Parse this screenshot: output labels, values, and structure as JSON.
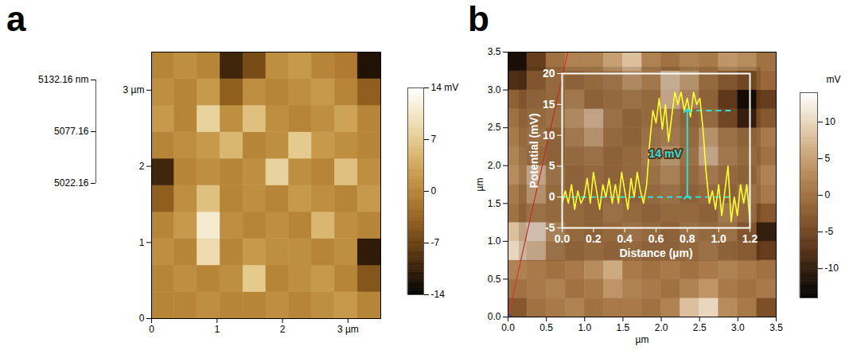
{
  "chart_data": [
    {
      "type": "heatmap",
      "panel": "a",
      "x_edges": [
        0,
        0.35,
        0.7,
        1.05,
        1.4,
        1.75,
        2.1,
        2.45,
        2.8,
        3.15,
        3.5
      ],
      "y_edges": [
        0,
        0.35,
        0.7,
        1.05,
        1.4,
        1.75,
        2.1,
        2.45,
        2.8,
        3.15,
        3.5
      ],
      "values": [
        [
          0,
          0,
          1,
          0,
          0,
          1,
          0,
          1,
          2,
          0
        ],
        [
          0,
          1,
          0,
          1,
          7,
          0,
          1,
          2,
          0,
          -5
        ],
        [
          1,
          0,
          9,
          0,
          2,
          1,
          1,
          0,
          1,
          -11
        ],
        [
          0,
          2,
          11,
          1,
          0,
          1,
          0,
          5,
          1,
          0
        ],
        [
          -4,
          1,
          6,
          0,
          1,
          0,
          2,
          1,
          0,
          2
        ],
        [
          -10,
          0,
          1,
          0,
          1,
          8,
          1,
          0,
          6,
          1
        ],
        [
          0,
          1,
          2,
          5,
          0,
          1,
          7,
          2,
          1,
          0
        ],
        [
          2,
          0,
          8,
          1,
          6,
          1,
          0,
          1,
          3,
          0
        ],
        [
          1,
          0,
          2,
          -4,
          1,
          0,
          1,
          2,
          0,
          -4
        ],
        [
          0,
          1,
          0,
          -10,
          -6,
          1,
          2,
          0,
          -1,
          -12
        ]
      ],
      "xlim": [
        0,
        3.5
      ],
      "ylim": [
        0,
        3.5
      ],
      "xticks": [
        0,
        1,
        2,
        {
          "value": 3,
          "label": "3 µm"
        }
      ],
      "yticks": [
        0,
        1,
        2,
        {
          "value": 3,
          "label": "3 µm"
        }
      ],
      "zlim": [
        5022.16,
        5132.16
      ],
      "zticks": [
        {
          "value": 5022.16,
          "label": "5022.16"
        },
        {
          "value": 5077.16,
          "label": "5077.16"
        },
        {
          "value": 5132.16,
          "label": "5132.16 nm"
        }
      ],
      "colorbar": {
        "lim": [
          -14,
          14
        ],
        "ticks": [
          -14,
          -7,
          0,
          7,
          {
            "value": 14,
            "label": "14 mV"
          }
        ]
      }
    },
    {
      "type": "heatmap",
      "panel": "b",
      "x_label": "µm",
      "y_label": "µm",
      "x_edges": [
        0,
        0.25,
        0.5,
        0.75,
        1,
        1.25,
        1.5,
        1.75,
        2,
        2.25,
        2.5,
        2.75,
        3,
        3.25,
        3.5
      ],
      "y_edges": [
        0,
        0.25,
        0.5,
        0.75,
        1,
        1.25,
        1.5,
        1.75,
        2,
        2.25,
        2.5,
        2.75,
        3,
        3.25,
        3.5
      ],
      "values": [
        [
          -3,
          0,
          1,
          2,
          0,
          1,
          1,
          0,
          2,
          8,
          10,
          3,
          1,
          -4
        ],
        [
          0,
          1,
          2,
          0,
          1,
          4,
          2,
          1,
          0,
          2,
          4,
          1,
          0,
          1
        ],
        [
          2,
          1,
          0,
          1,
          3,
          6,
          1,
          0,
          1,
          0,
          1,
          2,
          1,
          0
        ],
        [
          10,
          8,
          2,
          0,
          1,
          0,
          1,
          0,
          0,
          1,
          2,
          0,
          -1,
          -6
        ],
        [
          8,
          11,
          4,
          1,
          0,
          1,
          2,
          1,
          0,
          2,
          1,
          2,
          -2,
          -10
        ],
        [
          0,
          2,
          1,
          1,
          0,
          2,
          1,
          0,
          1,
          1,
          0,
          3,
          1,
          -3
        ],
        [
          1,
          6,
          1,
          0,
          0,
          1,
          0,
          1,
          2,
          0,
          1,
          0,
          2,
          1
        ],
        [
          3,
          8,
          2,
          0,
          1,
          0,
          1,
          2,
          4,
          1,
          3,
          1,
          0,
          2
        ],
        [
          2,
          1,
          0,
          1,
          2,
          0,
          1,
          3,
          6,
          2,
          8,
          3,
          1,
          0
        ],
        [
          1,
          2,
          0,
          3,
          6,
          1,
          0,
          2,
          3,
          1,
          6,
          2,
          0,
          1
        ],
        [
          0,
          1,
          2,
          5,
          8,
          2,
          0,
          1,
          2,
          0,
          1,
          -4,
          -10,
          -3
        ],
        [
          -2,
          0,
          1,
          3,
          0,
          1,
          2,
          1,
          8,
          4,
          0,
          -6,
          -13,
          -6
        ],
        [
          -8,
          -2,
          1,
          0,
          1,
          2,
          5,
          3,
          9,
          6,
          1,
          -2,
          -4,
          -1
        ],
        [
          -12,
          -6,
          0,
          2,
          2,
          5,
          8,
          2,
          0,
          2,
          1,
          4,
          3,
          0
        ]
      ],
      "xlim": [
        0,
        3.5
      ],
      "ylim": [
        0,
        3.5
      ],
      "xticks": [
        {
          "value": 0,
          "label": "0.0"
        },
        0.5,
        {
          "value": 1,
          "label": "1.0"
        },
        1.5,
        {
          "value": 2,
          "label": "2.0"
        },
        2.5,
        {
          "value": 3,
          "label": "3.0"
        },
        3.5
      ],
      "yticks": [
        {
          "value": 0,
          "label": "0.0"
        },
        0.5,
        {
          "value": 1,
          "label": "1.0"
        },
        1.5,
        {
          "value": 2,
          "label": "2.0"
        },
        2.5,
        {
          "value": 3,
          "label": "3.0"
        },
        3.5
      ],
      "colorbar": {
        "label": "mV",
        "lim": [
          -14,
          14
        ],
        "ticks": [
          -10,
          -5,
          0,
          5,
          10
        ]
      },
      "profile_line": {
        "x": [
          0,
          0.78
        ],
        "y": [
          0,
          3.5
        ],
        "color": "#e03030",
        "marker": "circle"
      }
    },
    {
      "type": "line",
      "panel": "b",
      "x_label": "Distance (µm)",
      "y_label": "Potential (mV)",
      "x": [
        0,
        0.02,
        0.04,
        0.06,
        0.08,
        0.1,
        0.12,
        0.14,
        0.16,
        0.18,
        0.2,
        0.22,
        0.24,
        0.26,
        0.28,
        0.3,
        0.32,
        0.34,
        0.36,
        0.38,
        0.4,
        0.42,
        0.44,
        0.46,
        0.48,
        0.5,
        0.52,
        0.54,
        0.56,
        0.58,
        0.6,
        0.62,
        0.64,
        0.66,
        0.68,
        0.7,
        0.72,
        0.74,
        0.76,
        0.78,
        0.8,
        0.82,
        0.84,
        0.86,
        0.88,
        0.9,
        0.92,
        0.94,
        0.96,
        0.98,
        1,
        1.02,
        1.04,
        1.06,
        1.08,
        1.1,
        1.12,
        1.14,
        1.16,
        1.18,
        1.2
      ],
      "values": [
        -1,
        1,
        -1,
        2,
        -2,
        1,
        -1,
        0,
        3,
        -1,
        4,
        1,
        -2,
        2,
        0,
        3,
        -1,
        2,
        -1,
        4,
        1,
        -2,
        3,
        0,
        4,
        1,
        -1,
        2,
        9,
        14,
        12,
        16,
        11,
        15,
        9,
        13,
        17,
        15,
        17,
        14,
        16,
        13,
        17,
        15,
        16,
        11,
        4,
        -1,
        1,
        -2,
        2,
        -3,
        1,
        5,
        -4,
        0,
        -3,
        2,
        -1,
        2,
        -4
      ],
      "color": "#ffff33",
      "xlim": [
        0,
        1.2
      ],
      "ylim": [
        -5,
        20
      ],
      "xticks": [
        {
          "value": 0,
          "label": "0.0"
        },
        0.2,
        0.4,
        0.6,
        0.8,
        {
          "value": 1,
          "label": "1.0"
        },
        1.2
      ],
      "yticks": [
        -5,
        0,
        5,
        10,
        15,
        20
      ],
      "reference_lines": [
        {
          "y": 0,
          "x1": 0,
          "x2": 1.1
        },
        {
          "y": 14,
          "x1": 0.8,
          "x2": 1.1
        }
      ],
      "annotation": {
        "text": "14 mV",
        "x": 0.8,
        "y1": 0,
        "y2": 14,
        "color": "#33dddd"
      }
    }
  ]
}
